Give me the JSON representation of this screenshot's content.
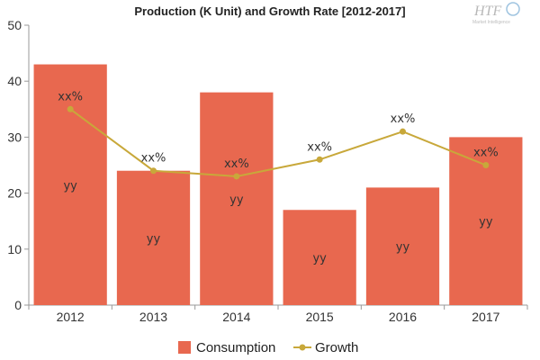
{
  "chart_data": {
    "type": "bar",
    "title": "Production (K Unit) and Growth Rate [2012-2017]",
    "categories": [
      "2012",
      "2013",
      "2014",
      "2015",
      "2016",
      "2017"
    ],
    "series": [
      {
        "name": "Consumption",
        "type": "bar",
        "values": [
          43,
          24,
          38,
          17,
          21,
          30
        ],
        "labels": [
          "yy",
          "yy",
          "yy",
          "yy",
          "yy",
          "yy"
        ],
        "color": "#e8684f"
      },
      {
        "name": "Growth",
        "type": "line",
        "values": [
          35,
          24,
          23,
          26,
          31,
          25
        ],
        "labels": [
          "xx%",
          "xx%",
          "xx%",
          "xx%",
          "xx%",
          "xx%"
        ],
        "color": "#c8a83a"
      }
    ],
    "ylim": [
      0,
      50
    ],
    "yticks": [
      0,
      10,
      20,
      30,
      40,
      50
    ],
    "grid": false,
    "legend_position": "bottom"
  },
  "watermark": {
    "text": "HTF",
    "subtext": "Market Intelligence"
  }
}
